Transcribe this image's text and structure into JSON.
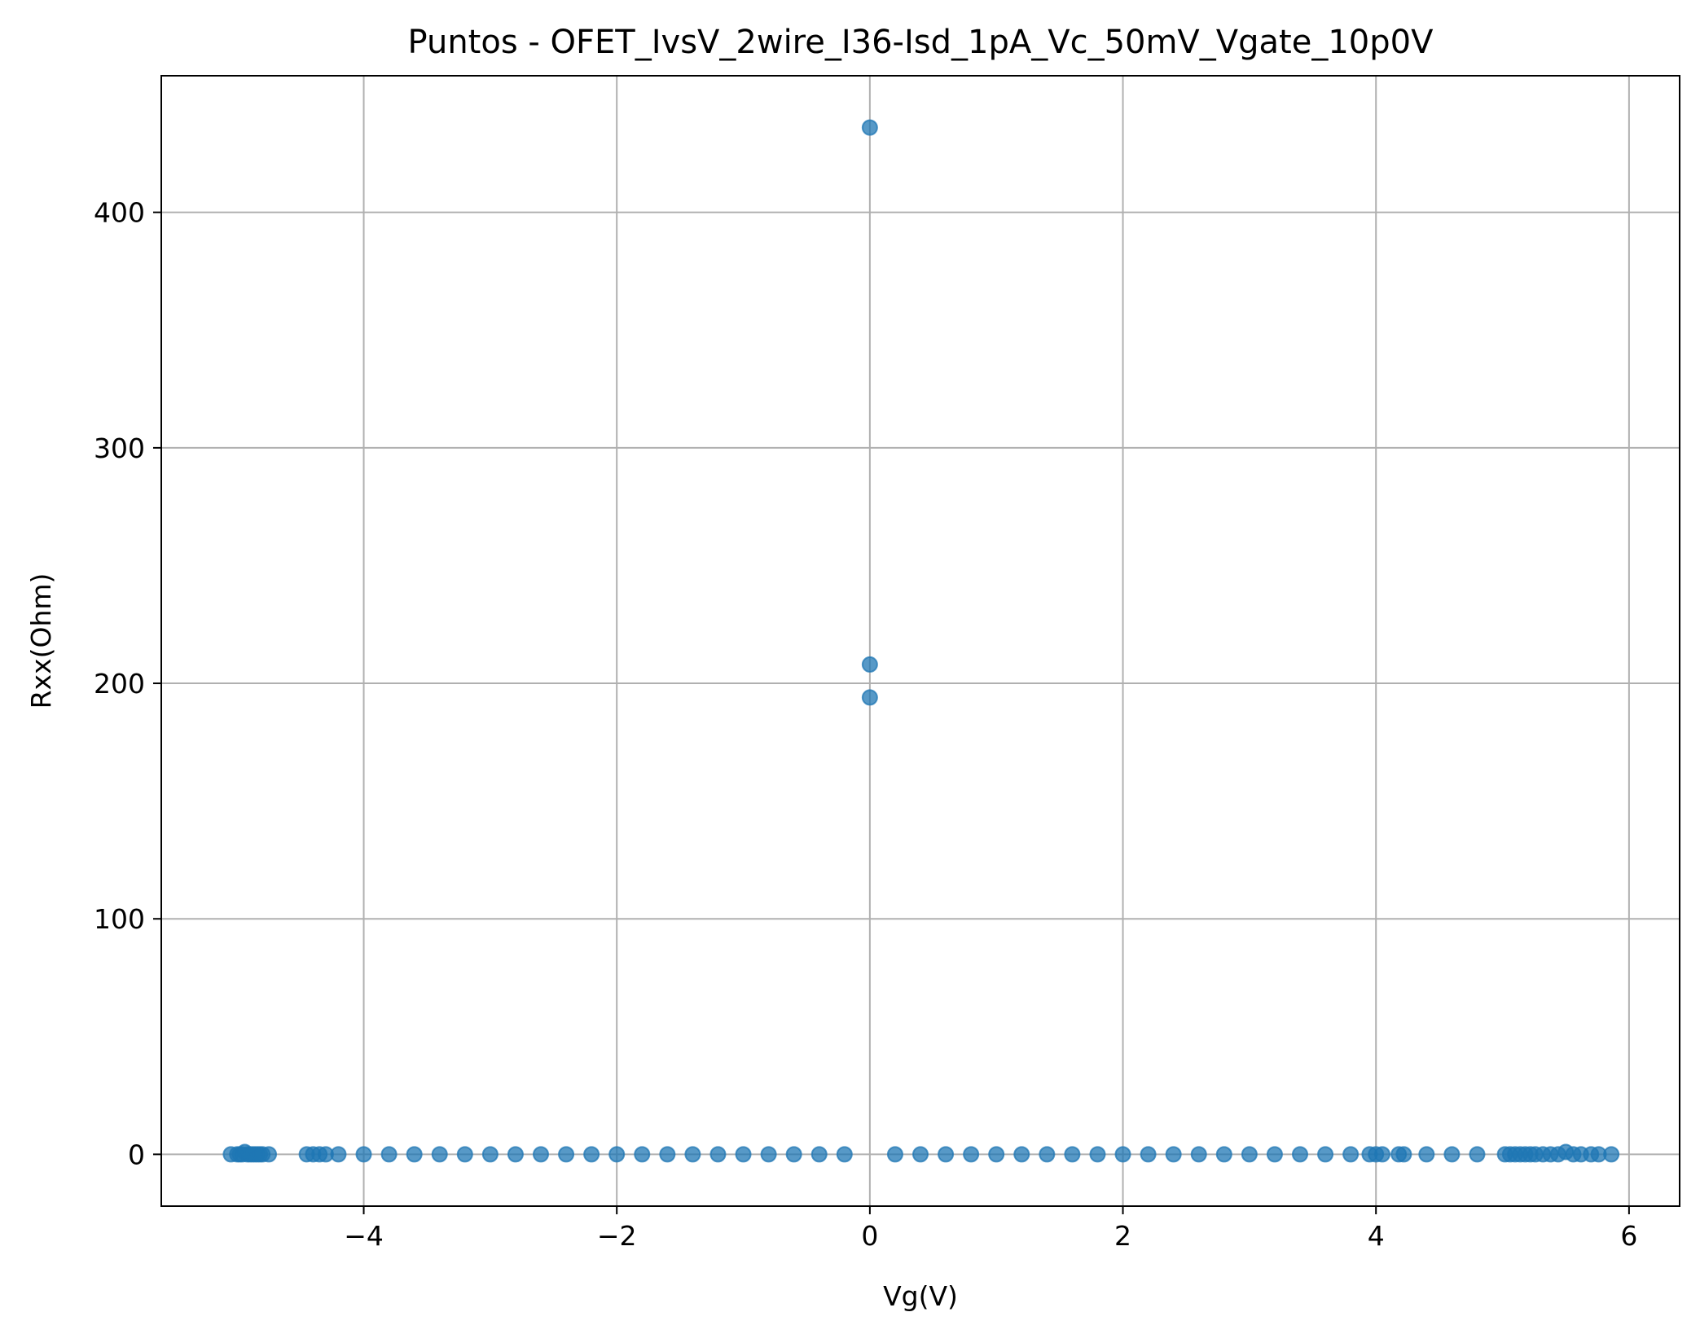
{
  "chart_data": {
    "type": "scatter",
    "title": "Puntos - OFET_IvsV_2wire_I36-Isd_1pA_Vc_50mV_Vgate_10p0V",
    "xlabel": "Vg(V)",
    "ylabel": "Rxx(Ohm)",
    "xlim": [
      -5.6,
      6.4
    ],
    "ylim": [
      -22,
      458
    ],
    "xticks": [
      -4,
      -2,
      0,
      2,
      4,
      6
    ],
    "yticks": [
      0,
      100,
      200,
      300,
      400
    ],
    "xtick_labels": [
      "−4",
      "−2",
      "0",
      "2",
      "4",
      "6"
    ],
    "ytick_labels": [
      "0",
      "100",
      "200",
      "300",
      "400"
    ],
    "grid": true,
    "marker_color": "#1f77b4",
    "series": [
      {
        "x": [
          -5.05,
          -5.0,
          -4.98,
          -4.96,
          -4.94,
          -4.92,
          -4.9,
          -4.88,
          -4.86,
          -4.84,
          -4.82,
          -4.8,
          -4.75,
          -4.45,
          -4.4,
          -4.35,
          -4.3,
          -4.2,
          -4.0,
          -3.8,
          -3.6,
          -3.4,
          -3.2,
          -3.0,
          -2.8,
          -2.6,
          -2.4,
          -2.2,
          -2.0,
          -1.8,
          -1.6,
          -1.4,
          -1.2,
          -1.0,
          -0.8,
          -0.6,
          -0.4,
          -0.2,
          0.0,
          0.0,
          0.0,
          0.2,
          0.4,
          0.6,
          0.8,
          1.0,
          1.2,
          1.4,
          1.6,
          1.8,
          2.0,
          2.2,
          2.4,
          2.6,
          2.8,
          3.0,
          3.2,
          3.4,
          3.6,
          3.8,
          3.95,
          4.0,
          4.05,
          4.18,
          4.22,
          4.4,
          4.6,
          4.8,
          5.02,
          5.06,
          5.1,
          5.14,
          5.18,
          5.22,
          5.26,
          5.32,
          5.38,
          5.44,
          5.5,
          5.56,
          5.62,
          5.7,
          5.76,
          5.86
        ],
        "y": [
          0,
          0,
          0,
          0,
          1,
          0,
          0,
          0,
          0,
          0,
          0,
          0,
          0,
          0,
          0,
          0,
          0,
          0,
          0,
          0,
          0,
          0,
          0,
          0,
          0,
          0,
          0,
          0,
          0,
          0,
          0,
          0,
          0,
          0,
          0,
          0,
          0,
          0,
          436,
          208,
          194,
          0,
          0,
          0,
          0,
          0,
          0,
          0,
          0,
          0,
          0,
          0,
          0,
          0,
          0,
          0,
          0,
          0,
          0,
          0,
          0,
          0,
          0,
          0,
          0,
          0,
          0,
          0,
          0,
          0,
          0,
          0,
          0,
          0,
          0,
          0,
          0,
          0,
          1,
          0,
          0,
          0,
          0,
          0
        ]
      }
    ]
  }
}
